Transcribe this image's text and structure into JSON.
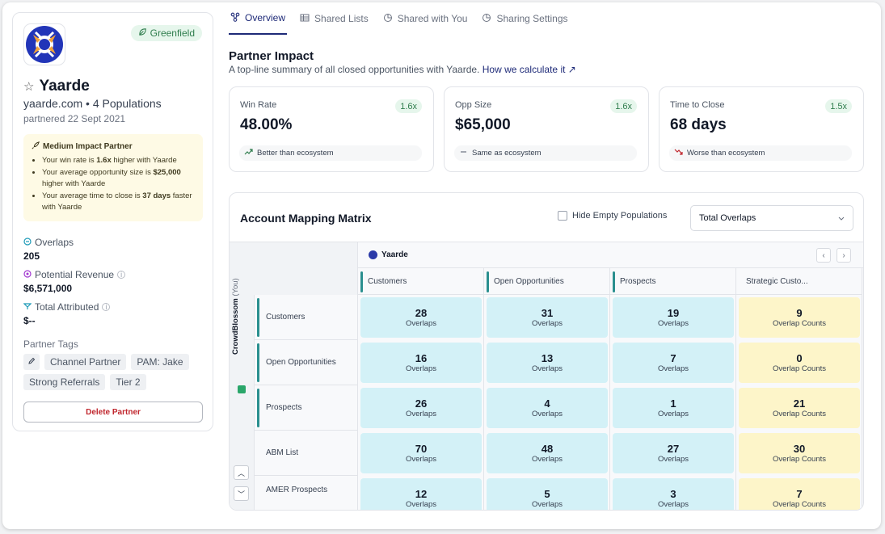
{
  "partner": {
    "name": "Yaarde",
    "badge": "Greenfield",
    "domain_line": "yaarde.com • 4 Populations",
    "partnered": "partnered 22 Sept 2021"
  },
  "impact": {
    "title": "Medium Impact Partner",
    "b1_pre": "Your win rate is ",
    "b1_bold": "1.6x",
    "b1_post": " higher with Yaarde",
    "b2_pre": "Your average opportunity size is ",
    "b2_bold": "$25,000",
    "b2_post": " higher with Yaarde",
    "b3_pre": "Your average time to close is ",
    "b3_bold": "37 days",
    "b3_post": " faster with Yaarde"
  },
  "metrics": {
    "overlaps_label": "Overlaps",
    "overlaps_value": "205",
    "revenue_label": "Potential Revenue",
    "revenue_value": "$6,571,000",
    "attributed_label": "Total Attributed",
    "attributed_value": "$--"
  },
  "tags": {
    "label": "Partner Tags",
    "items": [
      "Channel Partner",
      "PAM: Jake",
      "Strong Referrals",
      "Tier 2"
    ]
  },
  "delete_label": "Delete Partner",
  "tabs": [
    "Overview",
    "Shared Lists",
    "Shared with You",
    "Sharing Settings"
  ],
  "impact_section": {
    "title": "Partner Impact",
    "subtitle": "A top-line summary of all closed opportunities with Yaarde.",
    "link": "How we calculate it ↗"
  },
  "stats": [
    {
      "label": "Win Rate",
      "mult": "1.6x",
      "value": "48.00%",
      "compare": "Better than ecosystem"
    },
    {
      "label": "Opp Size",
      "mult": "1.6x",
      "value": "$65,000",
      "compare": "Same as ecosystem"
    },
    {
      "label": "Time to Close",
      "mult": "1.5x",
      "value": "68 days",
      "compare": "Worse than ecosystem"
    }
  ],
  "matrix": {
    "title": "Account Mapping Matrix",
    "hide_empty": "Hide Empty Populations",
    "select_value": "Total Overlaps",
    "partner": "Yaarde",
    "you_company": "CrowdBlossom",
    "you_tag": "(You)",
    "columns": [
      "Customers",
      "Open Opportunities",
      "Prospects",
      "Strategic Custo..."
    ],
    "rows": [
      "Customers",
      "Open Opportunities",
      "Prospects",
      "ABM List",
      "AMER Prospects"
    ],
    "values": [
      [
        28,
        31,
        19,
        9
      ],
      [
        16,
        13,
        7,
        0
      ],
      [
        26,
        4,
        1,
        21
      ],
      [
        70,
        48,
        27,
        30
      ],
      [
        12,
        5,
        3,
        7
      ]
    ],
    "overlap_label": "Overlaps",
    "overlap_count_label": "Overlap Counts",
    "teal_color": "#d3f1f7",
    "yellow_color": "#fdf5c9"
  }
}
